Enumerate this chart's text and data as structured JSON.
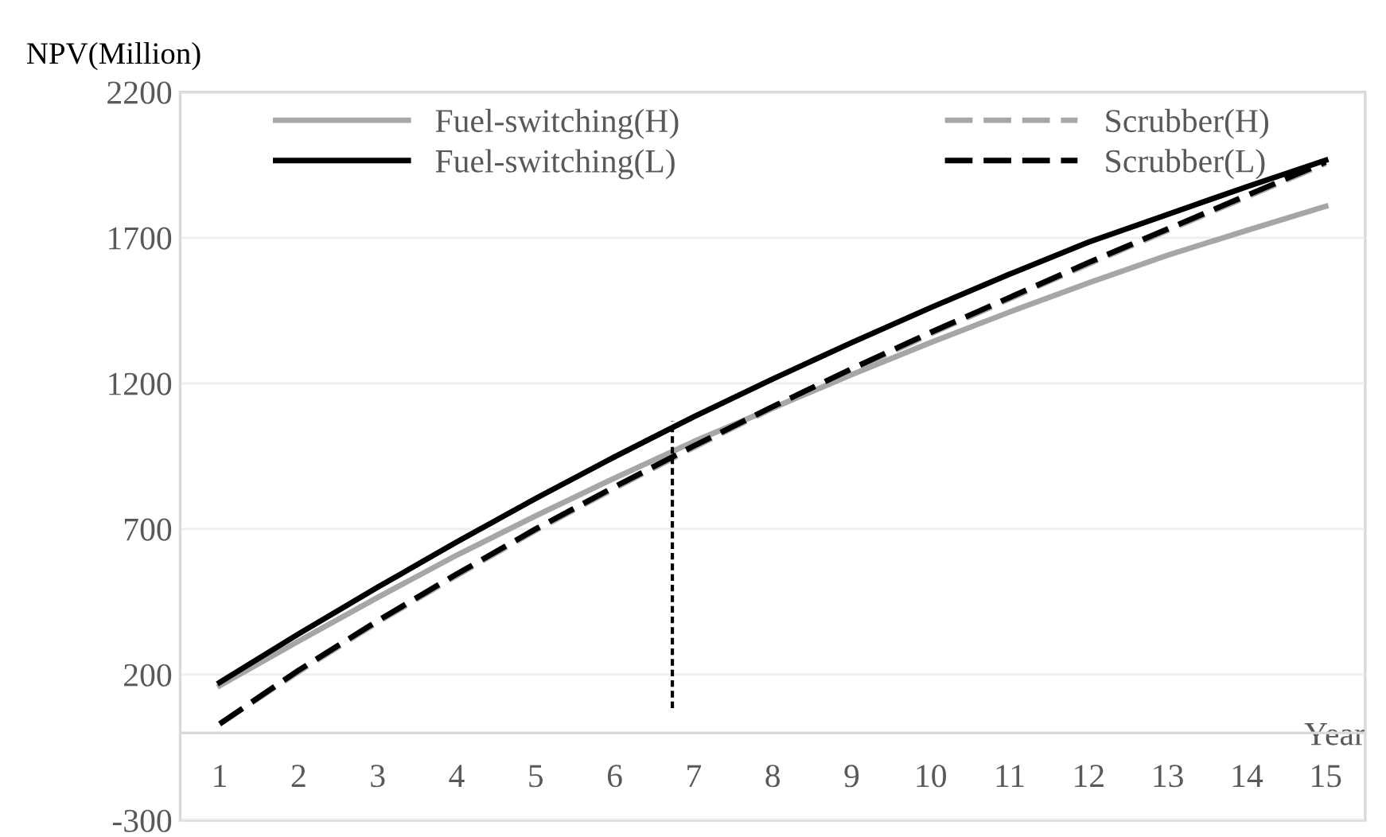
{
  "chart_data": {
    "type": "line",
    "xlabel": "Year",
    "ylabel": "NPV(Million)",
    "x": [
      1,
      2,
      3,
      4,
      5,
      6,
      7,
      8,
      9,
      10,
      11,
      12,
      13,
      14,
      15
    ],
    "xlim": [
      0.5,
      15.5
    ],
    "xticks": [
      1,
      2,
      3,
      4,
      5,
      6,
      7,
      8,
      9,
      10,
      11,
      12,
      13,
      14,
      15
    ],
    "ylim": [
      -300,
      2200
    ],
    "yticks": [
      -300,
      200,
      700,
      1200,
      1700,
      2200
    ],
    "grid": "y",
    "legend": "top",
    "series": [
      {
        "name": "Fuel-switching(H)",
        "color": "#a6a6a6",
        "line_style": "solid",
        "values": [
          162,
          315,
          465,
          610,
          745,
          875,
          1000,
          1115,
          1230,
          1340,
          1445,
          1545,
          1640,
          1725,
          1808
        ]
      },
      {
        "name": "Scrubber(H)",
        "color": "#a6a6a6",
        "line_style": "dashed",
        "values": [
          31,
          210,
          380,
          540,
          695,
          840,
          980,
          1115,
          1245,
          1370,
          1490,
          1610,
          1725,
          1840,
          1955
        ]
      },
      {
        "name": "Fuel-switching(L)",
        "color": "#000000",
        "line_style": "solid",
        "values": [
          173,
          340,
          500,
          655,
          805,
          948,
          1085,
          1215,
          1340,
          1460,
          1575,
          1685,
          1780,
          1875,
          1966
        ]
      },
      {
        "name": "Scrubber(L)",
        "color": "#000000",
        "line_style": "dashed",
        "values": [
          31,
          215,
          385,
          545,
          700,
          845,
          985,
          1120,
          1250,
          1375,
          1495,
          1615,
          1730,
          1845,
          1960
        ]
      },
      {
        "color": "#000000",
        "line_style": "dotted",
        "x": [
          6.73,
          6.73
        ],
        "values": [
          85,
          1070
        ]
      }
    ],
    "ref_lines": [
      {
        "axis": "y",
        "value": 0,
        "color": "#d9d9d9"
      }
    ]
  }
}
